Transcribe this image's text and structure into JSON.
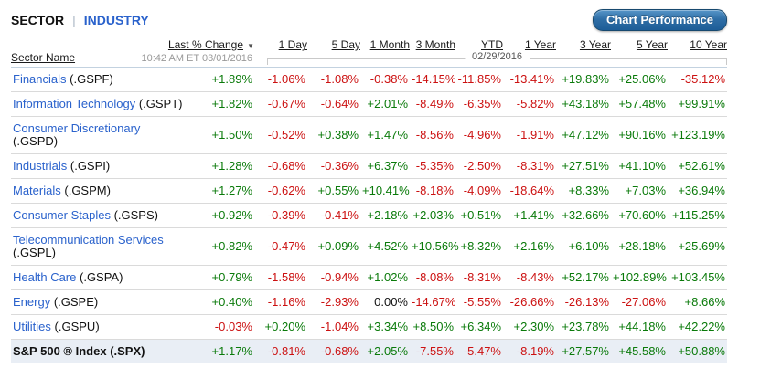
{
  "header": {
    "tabs": [
      {
        "label": "SECTOR",
        "active": true
      },
      {
        "label": "INDUSTRY",
        "active": false
      }
    ],
    "tab_separator": "|",
    "chart_button_label": "Chart Performance"
  },
  "table": {
    "sector_name_header": "Sector Name",
    "last_change_header": "Last % Change",
    "sort_caret": "▼",
    "timestamp": "10:42 AM ET 03/01/2016",
    "as_of_date": "02/29/2016",
    "period_headers": [
      "1 Day",
      "5 Day",
      "1 Month",
      "3 Month",
      "YTD",
      "1 Year",
      "3 Year",
      "5 Year",
      "10 Year"
    ],
    "rows": [
      {
        "name": "Financials",
        "ticker": "(.GSPF)",
        "is_index": false,
        "values": [
          "+1.89%",
          "-1.06%",
          "-1.08%",
          "-0.38%",
          "-14.15%",
          "-11.85%",
          "-13.41%",
          "+19.83%",
          "+25.06%",
          "-35.12%"
        ]
      },
      {
        "name": "Information Technology",
        "ticker": "(.GSPT)",
        "is_index": false,
        "values": [
          "+1.82%",
          "-0.67%",
          "-0.64%",
          "+2.01%",
          "-8.49%",
          "-6.35%",
          "-5.82%",
          "+43.18%",
          "+57.48%",
          "+99.91%"
        ]
      },
      {
        "name": "Consumer Discretionary",
        "ticker": "(.GSPD)",
        "is_index": false,
        "values": [
          "+1.50%",
          "-0.52%",
          "+0.38%",
          "+1.47%",
          "-8.56%",
          "-4.96%",
          "-1.91%",
          "+47.12%",
          "+90.16%",
          "+123.19%"
        ]
      },
      {
        "name": "Industrials",
        "ticker": "(.GSPI)",
        "is_index": false,
        "values": [
          "+1.28%",
          "-0.68%",
          "-0.36%",
          "+6.37%",
          "-5.35%",
          "-2.50%",
          "-8.31%",
          "+27.51%",
          "+41.10%",
          "+52.61%"
        ]
      },
      {
        "name": "Materials",
        "ticker": "(.GSPM)",
        "is_index": false,
        "values": [
          "+1.27%",
          "-0.62%",
          "+0.55%",
          "+10.41%",
          "-8.18%",
          "-4.09%",
          "-18.64%",
          "+8.33%",
          "+7.03%",
          "+36.94%"
        ]
      },
      {
        "name": "Consumer Staples",
        "ticker": "(.GSPS)",
        "is_index": false,
        "values": [
          "+0.92%",
          "-0.39%",
          "-0.41%",
          "+2.18%",
          "+2.03%",
          "+0.51%",
          "+1.41%",
          "+32.66%",
          "+70.60%",
          "+115.25%"
        ]
      },
      {
        "name": "Telecommunication Services",
        "ticker": "(.GSPL)",
        "is_index": false,
        "values": [
          "+0.82%",
          "-0.47%",
          "+0.09%",
          "+4.52%",
          "+10.56%",
          "+8.32%",
          "+2.16%",
          "+6.10%",
          "+28.18%",
          "+25.69%"
        ]
      },
      {
        "name": "Health Care",
        "ticker": "(.GSPA)",
        "is_index": false,
        "values": [
          "+0.79%",
          "-1.58%",
          "-0.94%",
          "+1.02%",
          "-8.08%",
          "-8.31%",
          "-8.43%",
          "+52.17%",
          "+102.89%",
          "+103.45%"
        ]
      },
      {
        "name": "Energy",
        "ticker": "(.GSPE)",
        "is_index": false,
        "values": [
          "+0.40%",
          "-1.16%",
          "-2.93%",
          "0.00%",
          "-14.67%",
          "-5.55%",
          "-26.66%",
          "-26.13%",
          "-27.06%",
          "+8.66%"
        ]
      },
      {
        "name": "Utilities",
        "ticker": "(.GSPU)",
        "is_index": false,
        "values": [
          "-0.03%",
          "+0.20%",
          "-1.04%",
          "+3.34%",
          "+8.50%",
          "+6.34%",
          "+2.30%",
          "+23.78%",
          "+44.18%",
          "+42.22%"
        ]
      },
      {
        "name": "S&P 500 ® Index",
        "ticker": "(.SPX)",
        "is_index": true,
        "values": [
          "+1.17%",
          "-0.81%",
          "-0.68%",
          "+2.05%",
          "-7.55%",
          "-5.47%",
          "-8.19%",
          "+27.57%",
          "+45.58%",
          "+50.88%"
        ]
      }
    ]
  },
  "colors": {
    "positive": "#0a7a0a",
    "negative": "#cc1111",
    "neutral": "#111111",
    "link_blue": "#2a62cc",
    "index_row_bg": "#e9eef5",
    "button_top": "#5796c9",
    "button_mid": "#2f6ea6",
    "button_bottom": "#1d5d97"
  }
}
